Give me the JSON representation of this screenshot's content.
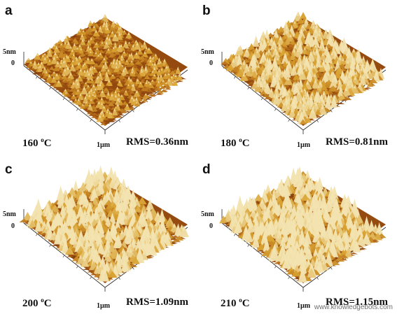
{
  "panels": [
    {
      "letter": "a",
      "temperature": "160",
      "temp_unit": "C",
      "degree_symbol": "o",
      "rms": "RMS=0.36nm",
      "z_top": "5nm",
      "z_zero": "0",
      "xy_label": "1µm",
      "roughness": 0.36
    },
    {
      "letter": "b",
      "temperature": "180",
      "temp_unit": "C",
      "degree_symbol": "o",
      "rms": "RMS=0.81nm",
      "z_top": "5nm",
      "z_zero": "0",
      "xy_label": "1µm",
      "roughness": 0.81
    },
    {
      "letter": "c",
      "temperature": "200",
      "temp_unit": "C",
      "degree_symbol": "o",
      "rms": "RMS=1.09nm",
      "z_top": "5nm",
      "z_zero": "0",
      "xy_label": "1µm",
      "roughness": 1.09
    },
    {
      "letter": "d",
      "temperature": "210",
      "temp_unit": "C",
      "degree_symbol": "o",
      "rms": "RMS=1.15nm",
      "z_top": "5nm",
      "z_zero": "0",
      "xy_label": "1µm",
      "roughness": 1.15
    }
  ],
  "watermark": "www.knowledgebots.com",
  "colors": {
    "dark": "#5a1e08",
    "mid": "#a85a12",
    "light": "#d9a230",
    "highlight": "#f2e3b0"
  }
}
